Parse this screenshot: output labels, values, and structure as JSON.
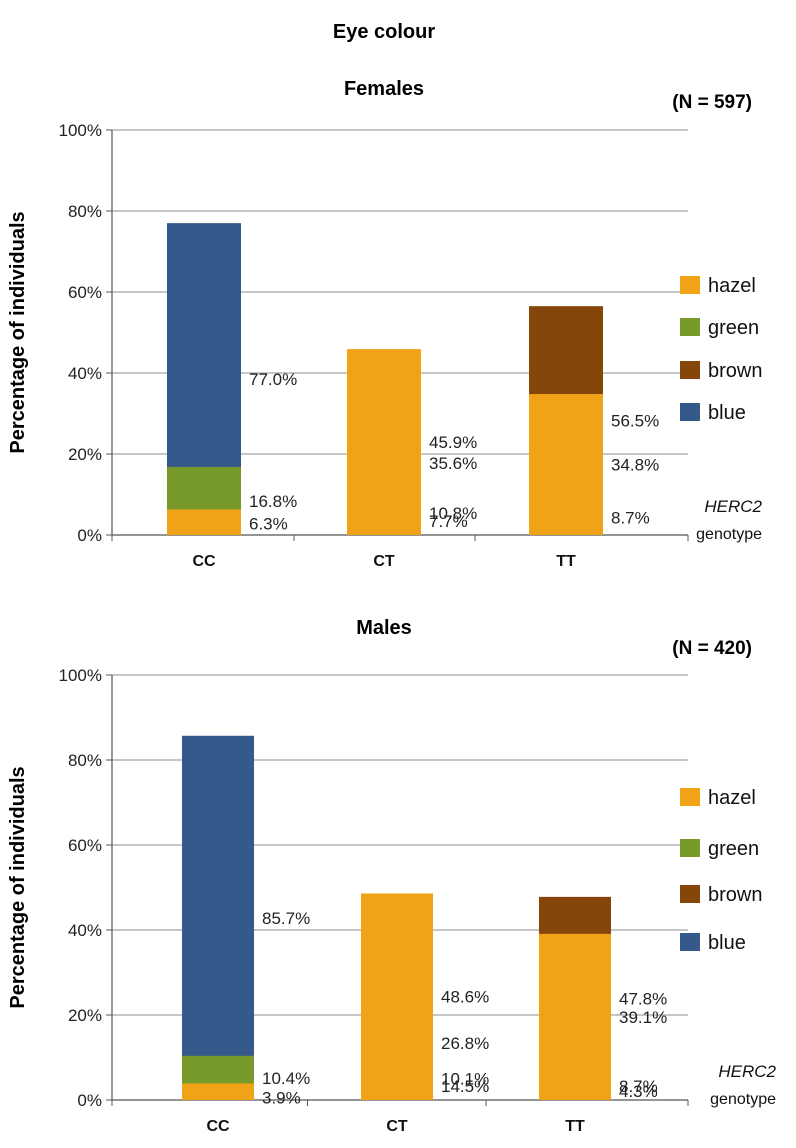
{
  "title": "Eye colour",
  "colors": {
    "hazel": "#F0A316",
    "green": "#779A2A",
    "brown": "#86460A",
    "blue": "#34598A",
    "grid": "#8c8c8c",
    "axis": "#555555"
  },
  "legend": [
    "hazel",
    "green",
    "brown",
    "blue"
  ],
  "chart_data": [
    {
      "type": "bar",
      "stacked": true,
      "title": "Females",
      "n_label": "(N = 597)",
      "ylabel": "Percentage of individuals",
      "xnote": {
        "gene": "HERC2",
        "suffix": "genotype"
      },
      "categories": [
        "CC",
        "CT",
        "TT"
      ],
      "yticks": [
        "0%",
        "20%",
        "40%",
        "60%",
        "80%",
        "100%"
      ],
      "ylim": [
        0,
        100
      ],
      "grid": true,
      "legend_position": "right",
      "series": [
        {
          "name": "blue",
          "values": [
            77.0,
            7.7,
            0
          ],
          "labels": [
            "77.0%",
            "7.7%",
            ""
          ]
        },
        {
          "name": "brown",
          "values": [
            0,
            35.6,
            56.5
          ],
          "labels": [
            "",
            "35.6%",
            "56.5%"
          ]
        },
        {
          "name": "green",
          "values": [
            16.8,
            10.8,
            8.7
          ],
          "labels": [
            "16.8%",
            "10.8%",
            "8.7%"
          ]
        },
        {
          "name": "hazel",
          "values": [
            6.3,
            45.9,
            34.8
          ],
          "labels": [
            "6.3%",
            "45.9%",
            "34.8%"
          ]
        }
      ]
    },
    {
      "type": "bar",
      "stacked": true,
      "title": "Males",
      "n_label": "(N = 420)",
      "ylabel": "Percentage of individuals",
      "xnote": {
        "gene": "HERC2",
        "suffix": "genotype"
      },
      "categories": [
        "CC",
        "CT",
        "TT"
      ],
      "yticks": [
        "0%",
        "20%",
        "40%",
        "60%",
        "80%",
        "100%"
      ],
      "ylim": [
        0,
        100
      ],
      "grid": true,
      "legend_position": "right",
      "series": [
        {
          "name": "blue",
          "values": [
            85.7,
            14.5,
            8.7
          ],
          "labels": [
            "85.7%",
            "14.5%",
            "8.7%"
          ]
        },
        {
          "name": "brown",
          "values": [
            0,
            26.8,
            47.8
          ],
          "labels": [
            "",
            "26.8%",
            "47.8%"
          ]
        },
        {
          "name": "green",
          "values": [
            10.4,
            10.1,
            4.3
          ],
          "labels": [
            "10.4%",
            "10.1%",
            "4.3%"
          ]
        },
        {
          "name": "hazel",
          "values": [
            3.9,
            48.6,
            39.1
          ],
          "labels": [
            "3.9%",
            "48.6%",
            "39.1%"
          ]
        }
      ]
    }
  ]
}
